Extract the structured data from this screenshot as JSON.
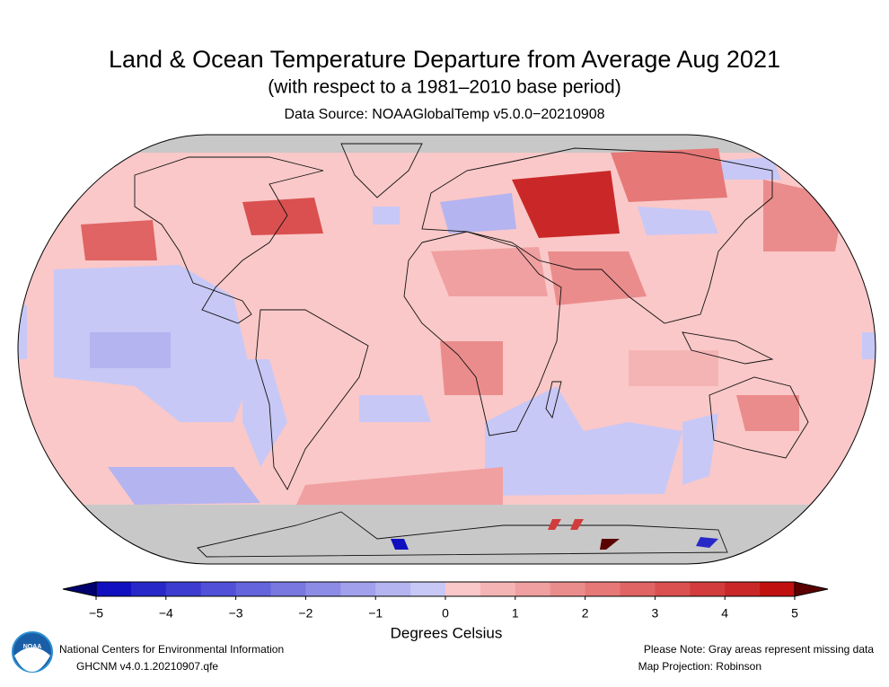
{
  "title": "Land & Ocean Temperature Departure from Average Aug 2021",
  "subtitle": "(with respect to a 1981–2010 base period)",
  "source": "Data Source: NOAAGlobalTemp v5.0.0−20210908",
  "colorbar": {
    "label": "Degrees Celsius",
    "under_color": "#00006e",
    "over_color": "#5a0000",
    "colors": [
      "#1010c0",
      "#2828c8",
      "#3c3cd0",
      "#5050d8",
      "#6464dc",
      "#7878e0",
      "#8c8ce6",
      "#a0a0ec",
      "#b4b4f0",
      "#c8c8f6",
      "#fac8c8",
      "#f5b4b4",
      "#f0a0a0",
      "#eb8c8c",
      "#e67878",
      "#e06464",
      "#da5050",
      "#d23c3c",
      "#ca2828",
      "#c01010"
    ],
    "ticks": [
      {
        "value": -5,
        "label": "−5"
      },
      {
        "value": -4,
        "label": "−4"
      },
      {
        "value": -3,
        "label": "−3"
      },
      {
        "value": -2,
        "label": "−2"
      },
      {
        "value": -1,
        "label": "−1"
      },
      0,
      1,
      2,
      3,
      4,
      5
    ],
    "lim": [
      -5,
      5
    ]
  },
  "footer": {
    "logo": "NOAA",
    "left": [
      "National Centers for Environmental Information",
      "GHCNM v4.0.1.20210907.qfe"
    ],
    "right": [
      "Please Note: Gray areas represent missing data",
      "Map Projection: Robinson"
    ]
  }
}
